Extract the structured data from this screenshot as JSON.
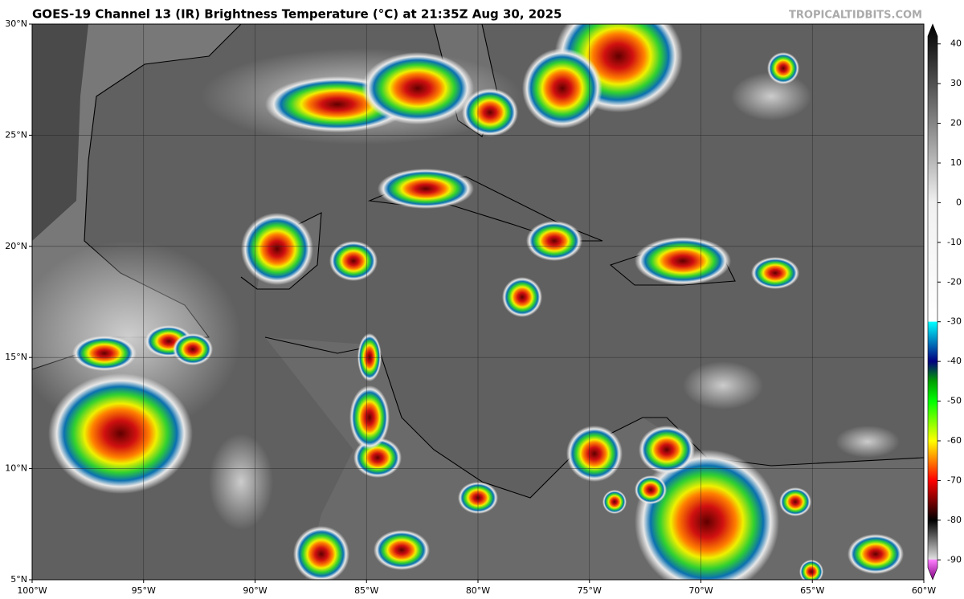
{
  "header": {
    "title": "GOES-19 Channel 13 (IR) Brightness Temperature (°C) at 21:35Z Aug 30, 2025",
    "watermark": "TROPICALTIDBITS.COM"
  },
  "map": {
    "xlim": [
      -100,
      -60
    ],
    "ylim": [
      5,
      30
    ],
    "grid": true,
    "xticks": [
      {
        "value": -100,
        "label": "100°W"
      },
      {
        "value": -95,
        "label": "95°W"
      },
      {
        "value": -90,
        "label": "90°W"
      },
      {
        "value": -85,
        "label": "85°W"
      },
      {
        "value": -80,
        "label": "80°W"
      },
      {
        "value": -75,
        "label": "75°W"
      },
      {
        "value": -70,
        "label": "70°W"
      },
      {
        "value": -65,
        "label": "65°W"
      },
      {
        "value": -60,
        "label": "60°W"
      }
    ],
    "yticks": [
      {
        "value": 5,
        "label": "5°N"
      },
      {
        "value": 10,
        "label": "10°N"
      },
      {
        "value": 15,
        "label": "15°N"
      },
      {
        "value": 20,
        "label": "20°N"
      },
      {
        "value": 25,
        "label": "25°N"
      },
      {
        "value": 30,
        "label": "30°N"
      }
    ]
  },
  "colorbar": {
    "lim": [
      -95,
      45
    ],
    "ticks": [
      40,
      30,
      20,
      10,
      0,
      -10,
      -20,
      -30,
      -40,
      -50,
      -60,
      -70,
      -80,
      -90
    ]
  }
}
